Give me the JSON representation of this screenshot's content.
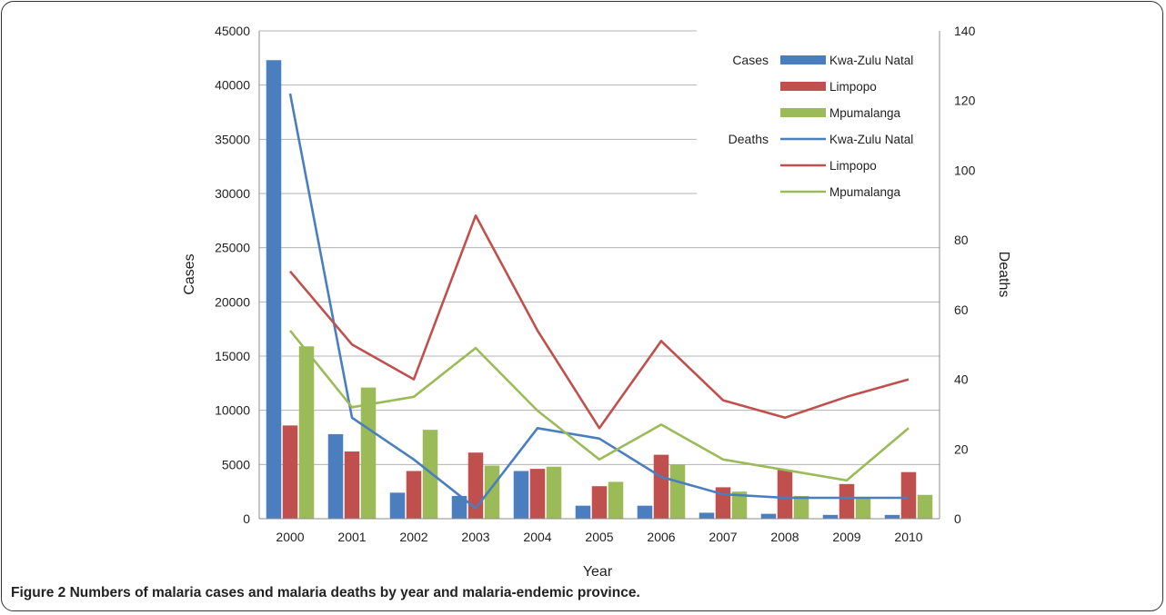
{
  "caption": "Figure 2 Numbers of malaria cases and malaria deaths by year and malaria-endemic province.",
  "chart_data": {
    "type": "bar",
    "categories": [
      "2000",
      "2001",
      "2002",
      "2003",
      "2004",
      "2005",
      "2006",
      "2007",
      "2008",
      "2009",
      "2010"
    ],
    "xlabel": "Year",
    "ylabel": "Cases",
    "y2label": "Deaths",
    "ylim": [
      0,
      45000
    ],
    "y2lim": [
      0,
      140
    ],
    "yticks": [
      0,
      5000,
      10000,
      15000,
      20000,
      25000,
      30000,
      35000,
      40000,
      45000
    ],
    "y2ticks": [
      0,
      20,
      40,
      60,
      80,
      100,
      120,
      140
    ],
    "grid": true,
    "legend_placement": "top-right",
    "legend_group_cases": "Cases",
    "legend_group_deaths": "Deaths",
    "bar_series": [
      {
        "name": "Kwa-Zulu Natal",
        "color": "#4a7ebf",
        "values": [
          42300,
          7800,
          2400,
          2100,
          4400,
          1200,
          1200,
          550,
          450,
          350,
          350
        ]
      },
      {
        "name": "Limpopo",
        "color": "#c0504d",
        "values": [
          8600,
          6200,
          4400,
          6100,
          4600,
          3000,
          5900,
          2900,
          4500,
          3200,
          4300
        ]
      },
      {
        "name": "Mpumalanga",
        "color": "#9bbb59",
        "values": [
          15900,
          12100,
          8200,
          4900,
          4800,
          3400,
          5000,
          2500,
          2100,
          2000,
          2200
        ]
      }
    ],
    "line_series": [
      {
        "name": "Kwa-Zulu Natal",
        "color": "#4a7ebf",
        "values": [
          122,
          29,
          17,
          3,
          26,
          23,
          12,
          7,
          6,
          6,
          6
        ]
      },
      {
        "name": "Limpopo",
        "color": "#c0504d",
        "values": [
          71,
          50,
          40,
          87,
          54,
          26,
          51,
          34,
          29,
          35,
          40
        ]
      },
      {
        "name": "Mpumalanga",
        "color": "#9bbb59",
        "values": [
          54,
          32,
          35,
          49,
          31,
          17,
          27,
          17,
          14,
          11,
          26
        ]
      }
    ]
  }
}
